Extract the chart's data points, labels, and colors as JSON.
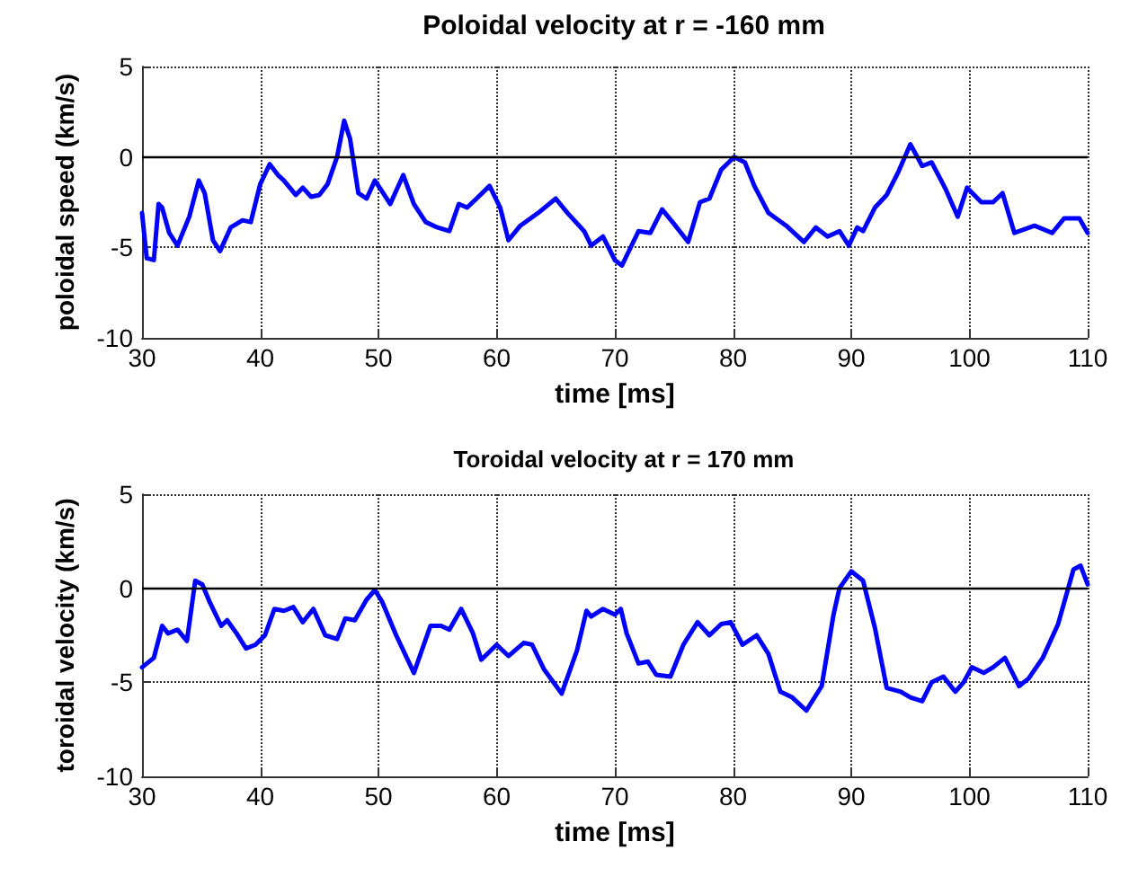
{
  "chart_data": [
    {
      "type": "line",
      "title": "Poloidal velocity at r = -160 mm",
      "xlabel": "time [ms]",
      "ylabel": "poloidal speed (km/s)",
      "series": [
        {
          "color": "#0000ff",
          "x": [
            30,
            30.4,
            31,
            31.4,
            31.7,
            32.3,
            33,
            34,
            34.8,
            35.3,
            36,
            36.6,
            37.5,
            38.5,
            39.2,
            40,
            40.8,
            41.5,
            42,
            43,
            43.6,
            44.3,
            45,
            45.7,
            46.5,
            47.1,
            47.6,
            48.3,
            49,
            49.7,
            50.5,
            51,
            52.1,
            53,
            54,
            55,
            56,
            56.8,
            57.5,
            58.3,
            59.4,
            60.3,
            61,
            62,
            63.5,
            65,
            66,
            67.4,
            68,
            69,
            70,
            70.6,
            72,
            73,
            74,
            75,
            76.2,
            77.2,
            78,
            79,
            80.1,
            81,
            81.8,
            83,
            84.5,
            86,
            87,
            88,
            89,
            89.8,
            90.5,
            91,
            92,
            93,
            94,
            95,
            96,
            96.8,
            98,
            99,
            99.8,
            101,
            102,
            102.8,
            103.8,
            105.5,
            107,
            108,
            109.3,
            110
          ],
          "values": [
            -3.1,
            -5.6,
            -5.7,
            -2.6,
            -2.8,
            -4.2,
            -4.9,
            -3.3,
            -1.3,
            -2,
            -4.6,
            -5.2,
            -3.9,
            -3.5,
            -3.6,
            -1.5,
            -0.4,
            -1,
            -1.3,
            -2.1,
            -1.7,
            -2.2,
            -2.1,
            -1.5,
            0,
            2,
            1,
            -2,
            -2.3,
            -1.3,
            -2.1,
            -2.6,
            -1,
            -2.6,
            -3.6,
            -3.9,
            -4.1,
            -2.6,
            -2.8,
            -2.3,
            -1.6,
            -2.8,
            -4.6,
            -3.8,
            -3.1,
            -2.3,
            -3.1,
            -4.1,
            -4.9,
            -4.4,
            -5.7,
            -6,
            -4.1,
            -4.2,
            -2.9,
            -3.7,
            -4.7,
            -2.5,
            -2.3,
            -0.7,
            0,
            -0.3,
            -1.6,
            -3.1,
            -3.8,
            -4.7,
            -3.9,
            -4.4,
            -4.1,
            -4.9,
            -3.9,
            -4.1,
            -2.8,
            -2.1,
            -0.8,
            0.7,
            -0.5,
            -0.3,
            -1.8,
            -3.3,
            -1.7,
            -2.5,
            -2.5,
            -2,
            -4.2,
            -3.8,
            -4.2,
            -3.4,
            -3.4,
            -4.2
          ]
        }
      ],
      "xlim": [
        30,
        110
      ],
      "xticks": [
        30,
        40,
        50,
        60,
        70,
        80,
        90,
        100,
        110
      ],
      "ylim": [
        -10,
        5
      ],
      "yticks": [
        -10,
        -5,
        0,
        5
      ],
      "ref_lines": [
        {
          "axis": "y",
          "value": 0,
          "color": "#000000",
          "line_style": "solid"
        }
      ],
      "grid": true,
      "line_style": "solid",
      "marker": "none"
    },
    {
      "type": "line",
      "title": "Toroidal velocity at r = 170 mm",
      "xlabel": "time [ms]",
      "ylabel": "toroidal velocity (km/s)",
      "series": [
        {
          "color": "#0000ff",
          "x": [
            30,
            31,
            31.7,
            32.2,
            33,
            33.8,
            34.5,
            35.1,
            35.7,
            36.7,
            37.2,
            38,
            38.8,
            39.6,
            40.4,
            41.2,
            42,
            42.8,
            43.6,
            44.5,
            45.5,
            46.5,
            47.2,
            48,
            49,
            49.7,
            50.3,
            51.5,
            53,
            54.4,
            55.3,
            56,
            57,
            58,
            58.7,
            60,
            61,
            62.3,
            63,
            64,
            65.5,
            66.8,
            67.6,
            68,
            69,
            70,
            70.5,
            71,
            72,
            72.8,
            73.5,
            74.7,
            75.8,
            77,
            78,
            79,
            79.8,
            80.8,
            82,
            83,
            84,
            85,
            86.2,
            87.5,
            88.5,
            89,
            90,
            91,
            92,
            93,
            94.2,
            95,
            96,
            96.8,
            97.8,
            98.8,
            99.5,
            100.2,
            101.2,
            102,
            103,
            104.2,
            105,
            106.2,
            107.5,
            108.8,
            109.4,
            110
          ],
          "values": [
            -4.2,
            -3.7,
            -2,
            -2.4,
            -2.2,
            -2.8,
            0.4,
            0.2,
            -0.7,
            -2,
            -1.7,
            -2.4,
            -3.2,
            -3,
            -2.5,
            -1.1,
            -1.2,
            -1,
            -1.8,
            -1.1,
            -2.5,
            -2.7,
            -1.6,
            -1.7,
            -0.6,
            -0.1,
            -0.7,
            -2.5,
            -4.5,
            -2,
            -2,
            -2.2,
            -1.1,
            -2.4,
            -3.8,
            -3,
            -3.6,
            -2.9,
            -3,
            -4.3,
            -5.6,
            -3.3,
            -1.2,
            -1.5,
            -1.1,
            -1.4,
            -1.1,
            -2.4,
            -4,
            -3.9,
            -4.6,
            -4.7,
            -3,
            -1.8,
            -2.5,
            -1.9,
            -1.8,
            -3,
            -2.5,
            -3.5,
            -5.5,
            -5.8,
            -6.5,
            -5.2,
            -1.4,
            0,
            0.9,
            0.4,
            -2.1,
            -5.3,
            -5.5,
            -5.8,
            -6,
            -5,
            -4.7,
            -5.5,
            -5,
            -4.2,
            -4.5,
            -4.2,
            -3.7,
            -5.2,
            -4.8,
            -3.7,
            -1.9,
            1,
            1.2,
            0.2
          ]
        }
      ],
      "xlim": [
        30,
        110
      ],
      "xticks": [
        30,
        40,
        50,
        60,
        70,
        80,
        90,
        100,
        110
      ],
      "ylim": [
        -10,
        5
      ],
      "yticks": [
        -10,
        -5,
        0,
        5
      ],
      "ref_lines": [
        {
          "axis": "y",
          "value": 0,
          "color": "#000000",
          "line_style": "solid"
        }
      ],
      "grid": true,
      "line_style": "solid",
      "marker": "none"
    }
  ]
}
